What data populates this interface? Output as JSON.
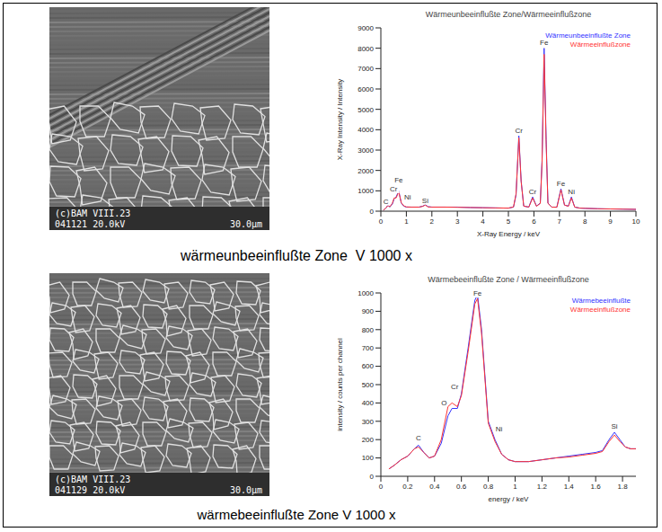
{
  "chart_data": [
    {
      "type": "line",
      "title": "Wärmeunbeeinflußte Zone/Wärmeeinflußzone",
      "x_label": "X-Ray Energy / keV",
      "y_label": "X-Ray Intensity / Intensity",
      "x": [
        0.1,
        0.2,
        0.28,
        0.35,
        0.45,
        0.52,
        0.6,
        0.7,
        0.8,
        0.9,
        1.0,
        1.2,
        1.5,
        1.65,
        1.74,
        1.85,
        2.0,
        2.5,
        3,
        3.5,
        4,
        4.5,
        5.0,
        5.2,
        5.3,
        5.41,
        5.5,
        5.6,
        5.8,
        5.95,
        6.1,
        6.25,
        6.32,
        6.4,
        6.48,
        6.55,
        6.7,
        6.9,
        7.06,
        7.2,
        7.35,
        7.47,
        7.6,
        7.8,
        8.0,
        8.5,
        9,
        9.5,
        10
      ],
      "series": [
        {
          "name": "Wärmeunbeeinflußte Zone",
          "color": "#3333ff",
          "values": [
            50,
            150,
            300,
            200,
            350,
            600,
            700,
            1000,
            400,
            250,
            200,
            200,
            200,
            250,
            320,
            220,
            200,
            200,
            200,
            180,
            170,
            160,
            150,
            200,
            800,
            3700,
            1500,
            250,
            200,
            700,
            250,
            400,
            2500,
            8000,
            3500,
            400,
            200,
            200,
            1100,
            300,
            250,
            700,
            200,
            150,
            140,
            120,
            110,
            100,
            90
          ]
        },
        {
          "name": "Wärmeeinflußzone",
          "color": "#ff3333",
          "values": [
            50,
            160,
            280,
            220,
            380,
            650,
            650,
            950,
            420,
            260,
            210,
            200,
            200,
            240,
            300,
            210,
            200,
            200,
            190,
            180,
            170,
            160,
            150,
            210,
            850,
            3600,
            1450,
            250,
            200,
            650,
            240,
            380,
            2400,
            7700,
            3300,
            380,
            200,
            190,
            1050,
            300,
            240,
            650,
            200,
            150,
            140,
            120,
            110,
            100,
            90
          ]
        }
      ],
      "xlim": [
        0,
        10
      ],
      "xticks": [
        0,
        1,
        2,
        3,
        4,
        5,
        6,
        7,
        8,
        9,
        10
      ],
      "ylim": [
        0,
        9000
      ],
      "yticks": [
        0,
        1000,
        2000,
        3000,
        4000,
        5000,
        6000,
        7000,
        8000,
        9000
      ],
      "grid": false,
      "legend": "upper right",
      "annotations": [
        {
          "label": "C",
          "x": 0.2,
          "y": 500
        },
        {
          "label": "Cr",
          "x": 0.5,
          "y": 1100
        },
        {
          "label": "Fe",
          "x": 0.7,
          "y": 1550
        },
        {
          "label": "Ni",
          "x": 1.05,
          "y": 700
        },
        {
          "label": "Si",
          "x": 1.74,
          "y": 550
        },
        {
          "label": "Cr",
          "x": 5.41,
          "y": 3950
        },
        {
          "label": "Cr",
          "x": 5.95,
          "y": 950
        },
        {
          "label": "Fe",
          "x": 6.4,
          "y": 8300
        },
        {
          "label": "Fe",
          "x": 7.06,
          "y": 1350
        },
        {
          "label": "Ni",
          "x": 7.47,
          "y": 950
        }
      ]
    },
    {
      "type": "line",
      "title": "Wärmebeeinflußte Zone / Wärmeeinflußzone",
      "x_label": "energy / keV",
      "y_label": "intensity / counts per channel",
      "x": [
        0.06,
        0.1,
        0.15,
        0.2,
        0.25,
        0.28,
        0.32,
        0.36,
        0.4,
        0.45,
        0.5,
        0.53,
        0.57,
        0.6,
        0.65,
        0.7,
        0.72,
        0.75,
        0.8,
        0.85,
        0.9,
        0.95,
        1.0,
        1.1,
        1.2,
        1.3,
        1.4,
        1.5,
        1.6,
        1.65,
        1.7,
        1.74,
        1.78,
        1.82,
        1.86,
        1.9
      ],
      "series": [
        {
          "name": "Wärmebeeinflußte",
          "color": "#3333ff",
          "values": [
            40,
            60,
            90,
            110,
            150,
            170,
            130,
            100,
            110,
            180,
            330,
            370,
            370,
            450,
            700,
            960,
            990,
            800,
            300,
            200,
            120,
            90,
            80,
            80,
            90,
            100,
            110,
            120,
            130,
            140,
            200,
            240,
            200,
            160,
            150,
            150
          ]
        },
        {
          "name": "Wärmeeinflußzone",
          "color": "#ff3333",
          "values": [
            40,
            60,
            90,
            110,
            150,
            160,
            130,
            100,
            110,
            200,
            380,
            400,
            380,
            440,
            680,
            940,
            970,
            780,
            290,
            190,
            120,
            90,
            80,
            80,
            90,
            100,
            105,
            115,
            125,
            135,
            190,
            225,
            190,
            160,
            150,
            150
          ]
        }
      ],
      "xlim": [
        0,
        1.9
      ],
      "xticks": [
        0,
        0.2,
        0.4,
        0.6,
        0.8,
        1,
        1.2,
        1.4,
        1.6,
        1.8
      ],
      "ylim": [
        0,
        1000
      ],
      "yticks": [
        0,
        100,
        200,
        300,
        400,
        500,
        600,
        700,
        800,
        900,
        1000
      ],
      "grid": false,
      "legend": "upper right",
      "annotations": [
        {
          "label": "C",
          "x": 0.28,
          "y": 210
        },
        {
          "label": "O",
          "x": 0.47,
          "y": 400
        },
        {
          "label": "Cr",
          "x": 0.55,
          "y": 490
        },
        {
          "label": "Fe",
          "x": 0.72,
          "y": 1000
        },
        {
          "label": "Ni",
          "x": 0.88,
          "y": 260
        },
        {
          "label": "Si",
          "x": 1.74,
          "y": 275
        }
      ]
    }
  ],
  "images": [
    {
      "labels": [
        "(c)BAM VIII.23",
        "041121 20.0kV",
        "30.0µm"
      ]
    },
    {
      "labels": [
        "(c)BAM VIII.23",
        "041129 20.0kV",
        "30.0µm"
      ]
    }
  ],
  "captions": [
    "wärmeunbeeinflußte Zone  V 1000 x",
    "wärmebeeinflußte Zone V 1000 x"
  ]
}
